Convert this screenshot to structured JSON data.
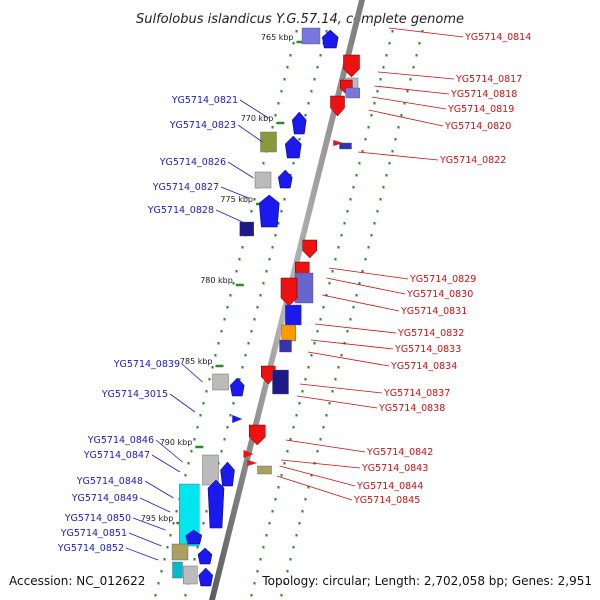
{
  "title": "Sulfolobus islandicus Y.G.57.14, complete genome",
  "accession": "Accession: NC_012622",
  "topology": "Topology: circular; Length: 2,702,058 bp; Genes: 2,951",
  "colors": {
    "forward_label": "#1a1acc",
    "reverse_label": "#cc1111",
    "forward_gene": "#1a1aee",
    "reverse_gene": "#ee1111",
    "backbone": "#888888",
    "tick": "#2a8a2a"
  },
  "scale_ticks": [
    {
      "label": "765 kbp",
      "pos": 765
    },
    {
      "label": "770 kbp",
      "pos": 770
    },
    {
      "label": "775 kbp",
      "pos": 775
    },
    {
      "label": "780 kbp",
      "pos": 780
    },
    {
      "label": "785 kbp",
      "pos": 785
    },
    {
      "label": "790 kbp",
      "pos": 790
    },
    {
      "label": "795 kbp",
      "pos": 795
    }
  ],
  "forward_genes": [
    "YG5714_0821",
    "YG5714_0823",
    "YG5714_0826",
    "YG5714_0827",
    "YG5714_0828",
    "YG5714_0839",
    "YG5714_3015",
    "YG5714_0846",
    "YG5714_0847",
    "YG5714_0848",
    "YG5714_0849",
    "YG5714_0850",
    "YG5714_0851",
    "YG5714_0852"
  ],
  "reverse_genes": [
    "YG5714_0814",
    "YG5714_0817",
    "YG5714_0818",
    "YG5714_0819",
    "YG5714_0820",
    "YG5714_0822",
    "YG5714_0829",
    "YG5714_0830",
    "YG5714_0831",
    "YG5714_0832",
    "YG5714_0833",
    "YG5714_0834",
    "YG5714_0837",
    "YG5714_0838",
    "YG5714_0842",
    "YG5714_0843",
    "YG5714_0844",
    "YG5714_0845"
  ]
}
